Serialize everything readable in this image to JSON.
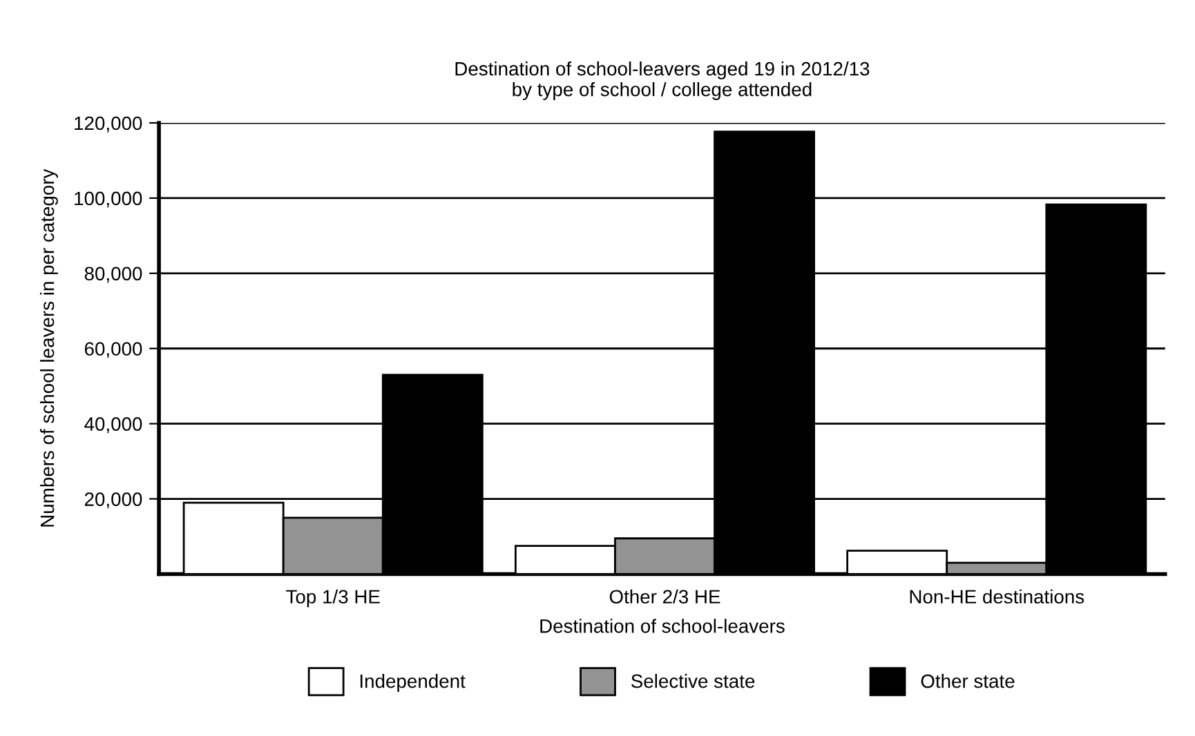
{
  "chart_data": {
    "type": "bar",
    "title": "Destination of school-leavers aged 19 in 2012/13\nby type of school / college attended",
    "xlabel": "Destination of school-leavers",
    "ylabel": "Numbers of school leavers in per category",
    "categories": [
      "Top 1/3 HE",
      "Other 2/3 HE",
      "Non-HE destinations"
    ],
    "series": [
      {
        "name": "Independent",
        "color": "#ffffff",
        "values": [
          19000,
          7500,
          6200
        ]
      },
      {
        "name": "Selective state",
        "color": "#939393",
        "values": [
          15000,
          9500,
          3000
        ]
      },
      {
        "name": "Other state",
        "color": "#000000",
        "values": [
          53000,
          117700,
          98300
        ]
      }
    ],
    "ylim": [
      0,
      120000
    ],
    "yticks": [
      {
        "value": 20000,
        "label": "20,000"
      },
      {
        "value": 40000,
        "label": "40,000"
      },
      {
        "value": 60000,
        "label": "60,000"
      },
      {
        "value": 80000,
        "label": "80,000"
      },
      {
        "value": 100000,
        "label": "100,000"
      },
      {
        "value": 120000,
        "label": "120,000"
      }
    ],
    "grid": "y",
    "legend": "bottom"
  }
}
